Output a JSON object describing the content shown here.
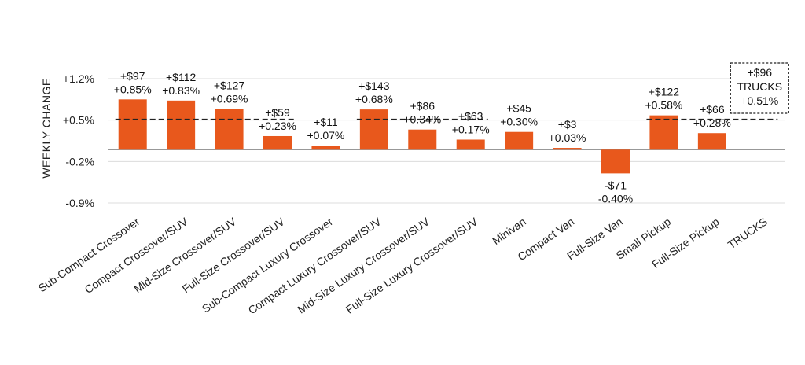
{
  "chart_data": {
    "type": "bar",
    "ylabel": "WEEKLY CHANGE",
    "ylim": [
      -0.9,
      1.2
    ],
    "yticks": [
      "+1.2%",
      "+0.5%",
      "-0.2%",
      "-0.9%"
    ],
    "grid": true,
    "bar_color": "#e8581c",
    "categories": [
      "Sub-Compact Crossover",
      "Compact Crossover/SUV",
      "Mid-Size Crossover/SUV",
      "Full-Size Crossover/SUV",
      "Sub-Compact Luxury Crossover",
      "Compact Luxury Crossover/SUV",
      "Mid-Size Luxury Crossover/SUV",
      "Full-Size Luxury Crossover/SUV",
      "Minivan",
      "Compact Van",
      "Full-Size Van",
      "Small Pickup",
      "Full-Size Pickup",
      "TRUCKS"
    ],
    "values": [
      0.85,
      0.83,
      0.69,
      0.23,
      0.07,
      0.68,
      0.34,
      0.17,
      0.3,
      0.03,
      -0.4,
      0.58,
      0.28,
      null
    ],
    "dollar_labels": [
      "+$97",
      "+$112",
      "+$127",
      "+$59",
      "+$11",
      "+$143",
      "+$86",
      "+$63",
      "+$45",
      "+$3",
      "-$71",
      "+$122",
      "+$66",
      "+$96"
    ],
    "pct_labels": [
      "+0.85%",
      "+0.83%",
      "+0.69%",
      "+0.23%",
      "+0.07%",
      "+0.68%",
      "+0.34%",
      "+0.17%",
      "+0.30%",
      "+0.03%",
      "-0.40%",
      "+0.58%",
      "+0.28%",
      "+0.51%"
    ],
    "group_averages": [
      {
        "from": 0,
        "to": 3,
        "value": 0.51
      },
      {
        "from": 5,
        "to": 7,
        "value": 0.51
      },
      {
        "from": 11,
        "to": 13,
        "value": 0.51
      }
    ],
    "callout": {
      "index": 13,
      "lines": [
        "+$96",
        "TRUCKS",
        "+0.51%"
      ]
    }
  }
}
